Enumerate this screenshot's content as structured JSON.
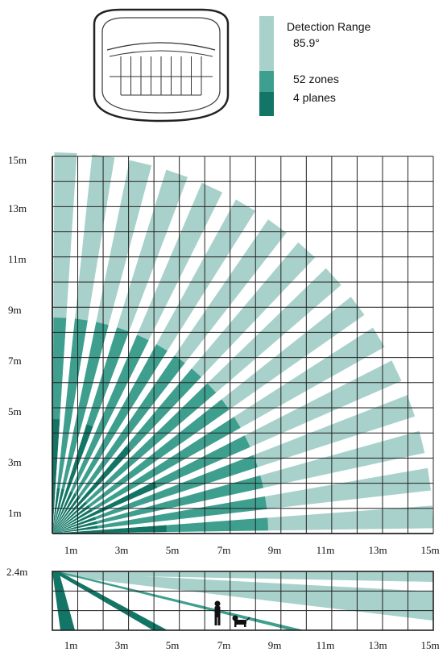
{
  "legend": {
    "title": "Detection Range",
    "angle": "85.9°",
    "zones": "52 zones",
    "planes": "4 planes"
  },
  "colors": {
    "light": "#a9d1cb",
    "mid": "#3f9f8f",
    "dark": "#137565",
    "grid": "#222222"
  },
  "top_view": {
    "y_tick_labels": [
      "15m",
      "13m",
      "11m",
      "9m",
      "7m",
      "5m",
      "3m",
      "1m"
    ],
    "x_tick_labels": [
      "1m",
      "3m",
      "5m",
      "7m",
      "9m",
      "11m",
      "13m",
      "15m"
    ],
    "beam_count": 16,
    "fan_angle_deg": 85.9,
    "ranges_m": {
      "light": 15,
      "mid": 8.5,
      "dark_plane_a": 4.5,
      "dark_plane_b": 1.8
    }
  },
  "side_view": {
    "height_label": "2.4m",
    "x_tick_labels": [
      "1m",
      "3m",
      "5m",
      "7m",
      "9m",
      "11m",
      "13m",
      "15m"
    ]
  }
}
